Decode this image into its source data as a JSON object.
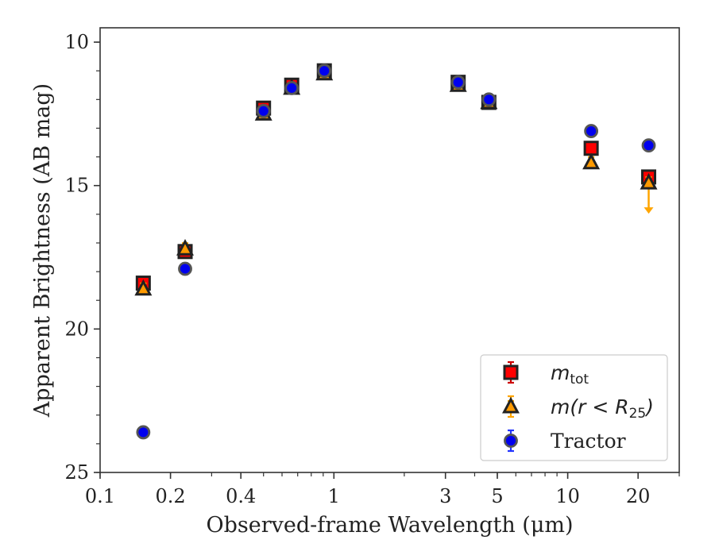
{
  "chart_data": {
    "type": "scatter",
    "xlabel": "Observed-frame Wavelength (μm)",
    "ylabel": "Apparent Brightness (AB mag)",
    "xscale": "log",
    "xlim": [
      0.1,
      30
    ],
    "ylim": [
      25,
      9.5
    ],
    "y_inverted": true,
    "xticks": [
      {
        "value": 0.1,
        "label": "0.1"
      },
      {
        "value": 0.2,
        "label": "0.2"
      },
      {
        "value": 0.4,
        "label": "0.4"
      },
      {
        "value": 1,
        "label": "1"
      },
      {
        "value": 3,
        "label": "3"
      },
      {
        "value": 5,
        "label": "5"
      },
      {
        "value": 10,
        "label": "10"
      },
      {
        "value": 20,
        "label": "20"
      }
    ],
    "yticks": [
      {
        "value": 10,
        "label": "10"
      },
      {
        "value": 15,
        "label": "15"
      },
      {
        "value": 20,
        "label": "20"
      },
      {
        "value": 25,
        "label": "25"
      }
    ],
    "legend_position": "lower-right",
    "grid": false,
    "series": [
      {
        "name": "m_tot",
        "legend_main": "m",
        "legend_sub": "tot",
        "marker": "square",
        "color": "#ff0000",
        "edge": "#222222",
        "errcolor": "#cc0000",
        "points": [
          {
            "x": 0.153,
            "y": 18.4
          },
          {
            "x": 0.231,
            "y": 17.3
          },
          {
            "x": 0.5,
            "y": 12.3
          },
          {
            "x": 0.66,
            "y": 11.5
          },
          {
            "x": 0.91,
            "y": 11.0
          },
          {
            "x": 3.4,
            "y": 11.4
          },
          {
            "x": 4.6,
            "y": 12.1
          },
          {
            "x": 12.6,
            "y": 13.7
          },
          {
            "x": 22.2,
            "y": 14.7
          }
        ]
      },
      {
        "name": "m(r < R25)",
        "legend_main": "m(r < R",
        "legend_sub": "25",
        "legend_tail": ")",
        "marker": "triangle",
        "color": "#ff9a00",
        "edge": "#222222",
        "errcolor": "#ffa500",
        "points": [
          {
            "x": 0.153,
            "y": 18.6
          },
          {
            "x": 0.231,
            "y": 17.2
          },
          {
            "x": 0.5,
            "y": 12.5
          },
          {
            "x": 0.66,
            "y": 11.6
          },
          {
            "x": 0.91,
            "y": 11.1
          },
          {
            "x": 3.4,
            "y": 11.5
          },
          {
            "x": 4.6,
            "y": 12.1
          },
          {
            "x": 12.6,
            "y": 14.2
          },
          {
            "x": 22.2,
            "y": 14.9,
            "upper_limit": true
          }
        ]
      },
      {
        "name": "Tractor",
        "legend_main": "Tractor",
        "marker": "circle",
        "color": "#0000ee",
        "edge": "#555555",
        "errcolor": "#2233ff",
        "points": [
          {
            "x": 0.153,
            "y": 23.6
          },
          {
            "x": 0.231,
            "y": 17.9
          },
          {
            "x": 0.5,
            "y": 12.4
          },
          {
            "x": 0.66,
            "y": 11.6
          },
          {
            "x": 0.91,
            "y": 11.0
          },
          {
            "x": 3.4,
            "y": 11.4
          },
          {
            "x": 4.6,
            "y": 12.0
          },
          {
            "x": 12.6,
            "y": 13.1
          },
          {
            "x": 22.2,
            "y": 13.6
          }
        ]
      }
    ]
  }
}
